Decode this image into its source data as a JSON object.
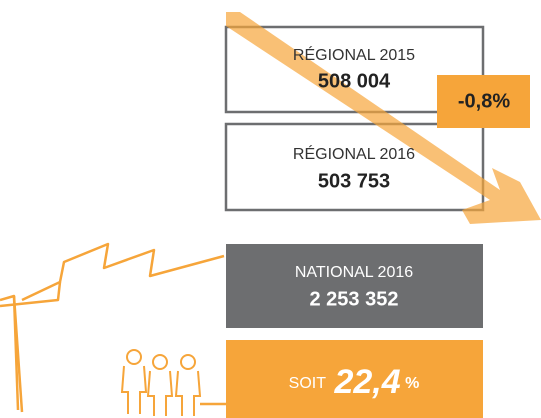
{
  "boxes": [
    {
      "label": "RÉGIONAL 2015",
      "value": "508 004"
    },
    {
      "label": "RÉGIONAL 2016",
      "value": "503 753"
    },
    {
      "label": "NATIONAL 2016",
      "value": "2 253 352"
    }
  ],
  "change": "-0,8%",
  "share": {
    "prefix": "SOIT",
    "number": "22,4",
    "unit": "%"
  }
}
